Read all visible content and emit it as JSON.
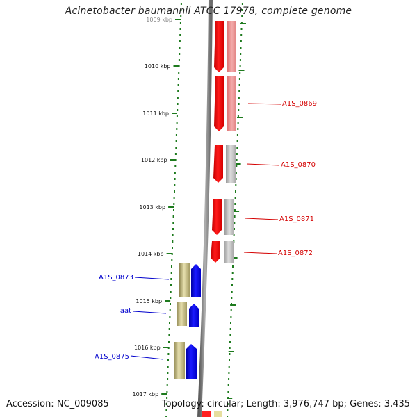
{
  "title": "Acinetobacter baumannii ATCC 17978, complete genome",
  "footer": {
    "accession": "Accession: NC_009085",
    "summary": "Topology: circular; Length: 3,976,747 bp; Genes: 3,435"
  },
  "ruler": {
    "ticks": [
      "1009 kbp",
      "1010 kbp",
      "1011 kbp",
      "1012 kbp",
      "1013 kbp",
      "1014 kbp",
      "1015 kbp",
      "1016 kbp",
      "1017 kbp"
    ]
  },
  "colors": {
    "forward_cds": "#ff0000",
    "forward_cds_pale": "#ee8888",
    "reverse_cds": "#0000ee",
    "reverse_pale": "#bcb27a",
    "gray_feature": "#b4b4b4",
    "backbone": "#808080",
    "tick": "#1d7a1d",
    "forward_label": "#d40000",
    "reverse_label": "#0000cc"
  },
  "gene_labels": {
    "forward": [
      "A1S_0869",
      "A1S_0870",
      "A1S_0871",
      "A1S_0872"
    ],
    "reverse": [
      "A1S_0873",
      "aat",
      "A1S_0875"
    ]
  }
}
